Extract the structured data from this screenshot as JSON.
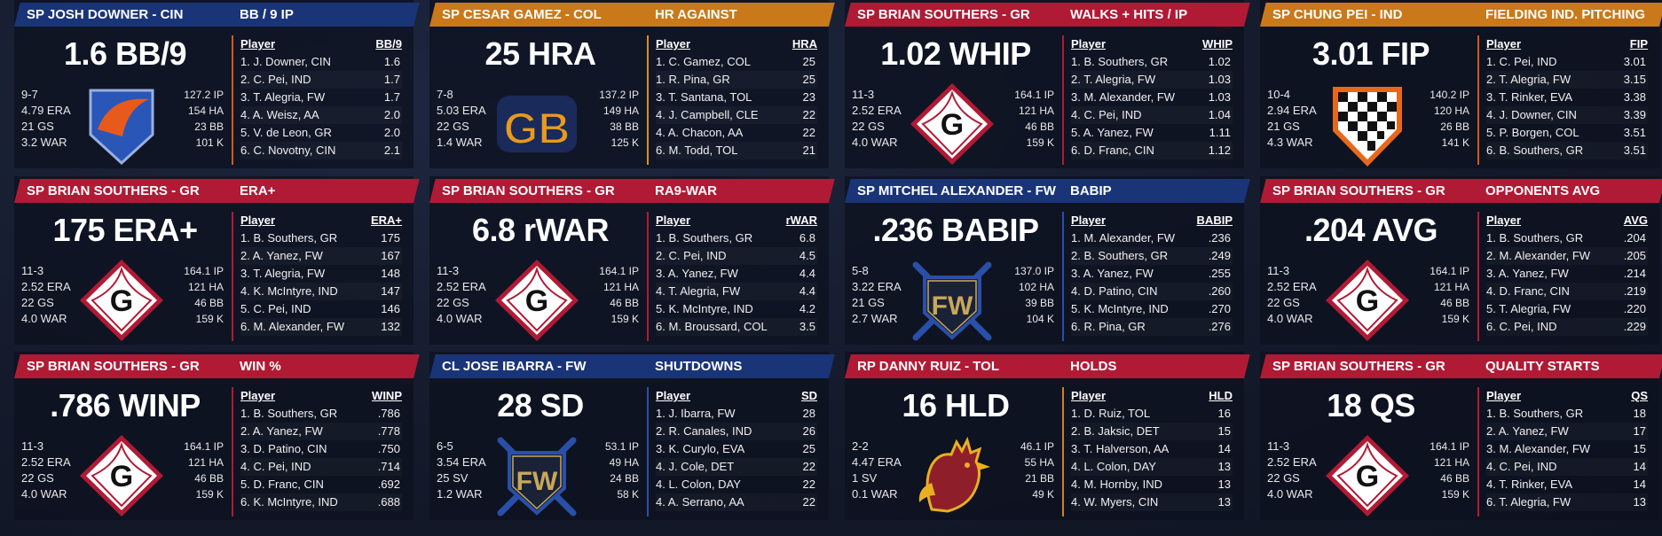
{
  "colors": {
    "red": "#b01a35",
    "blue": "#1a3478",
    "orange": "#c9781a",
    "gold": "#c8861c"
  },
  "cards": [
    {
      "id": "bb9",
      "header_color": "blue",
      "divider_color": "#d15a1b",
      "player": "SP JOSH DOWNER - CIN",
      "stat_title": "BB / 9 IP",
      "big_value": "1.6 BB/9",
      "logo": "cin-logo",
      "record": "9-7",
      "era": "4.79 ERA",
      "games": "21 GS",
      "war": "3.2 WAR",
      "ip": "127.2 IP",
      "hits": "154 HA",
      "bb": "23 BB",
      "k": "101 K",
      "col_player": "Player",
      "col_stat": "BB/9",
      "rows": [
        [
          "1. J. Downer, CIN",
          "1.6"
        ],
        [
          "2. C. Pei, IND",
          "1.7"
        ],
        [
          "3. T. Alegria, FW",
          "1.7"
        ],
        [
          "4. A. Weisz, AA",
          "2.0"
        ],
        [
          "5. V. de Leon, GR",
          "2.0"
        ],
        [
          "6. C. Novotny, CIN",
          "2.1"
        ]
      ]
    },
    {
      "id": "hra",
      "header_color": "orange",
      "divider_color": "#d6901f",
      "player": "SP CESAR GAMEZ - COL",
      "stat_title": "HR AGAINST",
      "big_value": "25 HRA",
      "logo": "gb-logo",
      "record": "7-8",
      "era": "5.03 ERA",
      "games": "22 GS",
      "war": "1.4 WAR",
      "ip": "137.2 IP",
      "hits": "149 HA",
      "bb": "38 BB",
      "k": "125 K",
      "col_player": "Player",
      "col_stat": "HRA",
      "rows": [
        [
          "1. C. Gamez, COL",
          "25"
        ],
        [
          "1. R. Pina, GR",
          "25"
        ],
        [
          "3. T. Santana, TOL",
          "23"
        ],
        [
          "4. J. Campbell, CLE",
          "22"
        ],
        [
          "4. A. Chacon, AA",
          "22"
        ],
        [
          "6. M. Todd, TOL",
          "21"
        ]
      ]
    },
    {
      "id": "whip",
      "header_color": "red",
      "divider_color": "#b01a35",
      "player": "SP BRIAN SOUTHERS - GR",
      "stat_title": "WALKS + HITS / IP",
      "big_value": "1.02 WHIP",
      "logo": "gr-logo",
      "record": "11-3",
      "era": "2.52 ERA",
      "games": "22 GS",
      "war": "4.0 WAR",
      "ip": "164.1 IP",
      "hits": "121 HA",
      "bb": "46 BB",
      "k": "159 K",
      "col_player": "Player",
      "col_stat": "WHIP",
      "rows": [
        [
          "1. B. Southers, GR",
          "1.02"
        ],
        [
          "2. T. Alegria, FW",
          "1.03"
        ],
        [
          "3. M. Alexander, FW",
          "1.03"
        ],
        [
          "4. C. Pei, IND",
          "1.04"
        ],
        [
          "5. A. Yanez, FW",
          "1.11"
        ],
        [
          "6. D. Franc, CIN",
          "1.12"
        ]
      ]
    },
    {
      "id": "fip",
      "header_color": "orange",
      "divider_color": "#d15a1b",
      "player": "SP CHUNG PEI - IND",
      "stat_title": "FIELDING IND. PITCHING",
      "big_value": "3.01 FIP",
      "logo": "ind-logo",
      "record": "10-4",
      "era": "2.94 ERA",
      "games": "21 GS",
      "war": "4.3 WAR",
      "ip": "140.2 IP",
      "hits": "120 HA",
      "bb": "26 BB",
      "k": "141 K",
      "col_player": "Player",
      "col_stat": "FIP",
      "rows": [
        [
          "1. C. Pei, IND",
          "3.01"
        ],
        [
          "2. T. Alegria, FW",
          "3.15"
        ],
        [
          "3. T. Rinker, EVA",
          "3.38"
        ],
        [
          "4. J. Downer, CIN",
          "3.39"
        ],
        [
          "5. P. Borgen, COL",
          "3.51"
        ],
        [
          "6. B. Southers, GR",
          "3.51"
        ]
      ]
    },
    {
      "id": "eraplus",
      "header_color": "red",
      "divider_color": "#b01a35",
      "player": "SP BRIAN SOUTHERS - GR",
      "stat_title": "ERA+",
      "big_value": "175 ERA+",
      "logo": "gr-logo",
      "record": "11-3",
      "era": "2.52 ERA",
      "games": "22 GS",
      "war": "4.0 WAR",
      "ip": "164.1 IP",
      "hits": "121 HA",
      "bb": "46 BB",
      "k": "159 K",
      "col_player": "Player",
      "col_stat": "ERA+",
      "rows": [
        [
          "1. B. Southers, GR",
          "175"
        ],
        [
          "2. A. Yanez, FW",
          "167"
        ],
        [
          "3. T. Alegria, FW",
          "148"
        ],
        [
          "4. K. McIntyre, IND",
          "147"
        ],
        [
          "5. C. Pei, IND",
          "146"
        ],
        [
          "6. M. Alexander, FW",
          "132"
        ]
      ]
    },
    {
      "id": "rwar",
      "header_color": "red",
      "divider_color": "#b01a35",
      "player": "SP BRIAN SOUTHERS - GR",
      "stat_title": "RA9-WAR",
      "big_value": "6.8 rWAR",
      "logo": "gr-logo",
      "record": "11-3",
      "era": "2.52 ERA",
      "games": "22 GS",
      "war": "4.0 WAR",
      "ip": "164.1 IP",
      "hits": "121 HA",
      "bb": "46 BB",
      "k": "159 K",
      "col_player": "Player",
      "col_stat": "rWAR",
      "rows": [
        [
          "1. B. Southers, GR",
          "6.8"
        ],
        [
          "2. C. Pei, IND",
          "4.5"
        ],
        [
          "3. A. Yanez, FW",
          "4.4"
        ],
        [
          "4. T. Alegria, FW",
          "4.4"
        ],
        [
          "5. K. McIntyre, IND",
          "4.2"
        ],
        [
          "6. M. Broussard, COL",
          "3.5"
        ]
      ]
    },
    {
      "id": "babip",
      "header_color": "blue",
      "divider_color": "#2a4fa8",
      "player": "SP MITCHEL ALEXANDER - FW",
      "stat_title": "BABIP",
      "big_value": ".236 BABIP",
      "logo": "fw-logo",
      "record": "5-8",
      "era": "3.22 ERA",
      "games": "21 GS",
      "war": "2.7 WAR",
      "ip": "137.0 IP",
      "hits": "102 HA",
      "bb": "39 BB",
      "k": "104 K",
      "col_player": "Player",
      "col_stat": "BABIP",
      "rows": [
        [
          "1. M. Alexander, FW",
          ".236"
        ],
        [
          "2. B. Southers, GR",
          ".249"
        ],
        [
          "3. A. Yanez, FW",
          ".255"
        ],
        [
          "4. D. Patino, CIN",
          ".260"
        ],
        [
          "5. K. McIntyre, IND",
          ".270"
        ],
        [
          "6. R. Pina, GR",
          ".276"
        ]
      ]
    },
    {
      "id": "avg",
      "header_color": "red",
      "divider_color": "#b01a35",
      "player": "SP BRIAN SOUTHERS - GR",
      "stat_title": "OPPONENTS AVG",
      "big_value": ".204 AVG",
      "logo": "gr-logo",
      "record": "11-3",
      "era": "2.52 ERA",
      "games": "22 GS",
      "war": "4.0 WAR",
      "ip": "164.1 IP",
      "hits": "121 HA",
      "bb": "46 BB",
      "k": "159 K",
      "col_player": "Player",
      "col_stat": "AVG",
      "rows": [
        [
          "1. B. Southers, GR",
          ".204"
        ],
        [
          "2. M. Alexander, FW",
          ".205"
        ],
        [
          "3. A. Yanez, FW",
          ".214"
        ],
        [
          "4. D. Franc, CIN",
          ".219"
        ],
        [
          "5. T. Alegria, FW",
          ".220"
        ],
        [
          "6. C. Pei, IND",
          ".229"
        ]
      ]
    },
    {
      "id": "winp",
      "header_color": "red",
      "divider_color": "#b01a35",
      "player": "SP BRIAN SOUTHERS - GR",
      "stat_title": "WIN %",
      "big_value": ".786 WINP",
      "logo": "gr-logo",
      "record": "11-3",
      "era": "2.52 ERA",
      "games": "22 GS",
      "war": "4.0 WAR",
      "ip": "164.1 IP",
      "hits": "121 HA",
      "bb": "46 BB",
      "k": "159 K",
      "col_player": "Player",
      "col_stat": "WINP",
      "rows": [
        [
          "1. B. Southers, GR",
          ".786"
        ],
        [
          "2. A. Yanez, FW",
          ".778"
        ],
        [
          "3. D. Patino, CIN",
          ".750"
        ],
        [
          "4. C. Pei, IND",
          ".714"
        ],
        [
          "5. D. Franc, CIN",
          ".692"
        ],
        [
          "6. K. McIntyre, IND",
          ".688"
        ]
      ]
    },
    {
      "id": "sd",
      "header_color": "blue",
      "divider_color": "#2a4fa8",
      "player": "CL JOSE IBARRA - FW",
      "stat_title": "SHUTDOWNS",
      "big_value": "28 SD",
      "logo": "fw-logo",
      "record": "6-5",
      "era": "3.54 ERA",
      "games": "25 SV",
      "war": "1.2 WAR",
      "ip": "53.1 IP",
      "hits": "49 HA",
      "bb": "24 BB",
      "k": "58 K",
      "col_player": "Player",
      "col_stat": "SD",
      "rows": [
        [
          "1. J. Ibarra, FW",
          "28"
        ],
        [
          "2. R. Canales, IND",
          "26"
        ],
        [
          "3. K. Curylo, EVA",
          "25"
        ],
        [
          "4. J. Cole, DET",
          "22"
        ],
        [
          "4. L. Colon, DAY",
          "22"
        ],
        [
          "4. A. Serrano, AA",
          "22"
        ]
      ]
    },
    {
      "id": "hld",
      "header_color": "red",
      "divider_color": "#c8861c",
      "player": "RP DANNY RUIZ - TOL",
      "stat_title": "HOLDS",
      "big_value": "16 HLD",
      "logo": "tol-logo",
      "record": "2-2",
      "era": "4.47 ERA",
      "games": "1 SV",
      "war": "0.1 WAR",
      "ip": "46.1 IP",
      "hits": "55 HA",
      "bb": "21 BB",
      "k": "49 K",
      "col_player": "Player",
      "col_stat": "HLD",
      "rows": [
        [
          "1. D. Ruiz, TOL",
          "16"
        ],
        [
          "2. B. Jaksic, DET",
          "15"
        ],
        [
          "3. T. Halverson, AA",
          "14"
        ],
        [
          "4. L. Colon, DAY",
          "13"
        ],
        [
          "4. M. Hornby, IND",
          "13"
        ],
        [
          "4. W. Myers, CIN",
          "13"
        ]
      ]
    },
    {
      "id": "qs",
      "header_color": "red",
      "divider_color": "#b01a35",
      "player": "SP BRIAN SOUTHERS - GR",
      "stat_title": "QUALITY STARTS",
      "big_value": "18 QS",
      "logo": "gr-logo",
      "record": "11-3",
      "era": "2.52 ERA",
      "games": "22 GS",
      "war": "4.0 WAR",
      "ip": "164.1 IP",
      "hits": "121 HA",
      "bb": "46 BB",
      "k": "159 K",
      "col_player": "Player",
      "col_stat": "QS",
      "rows": [
        [
          "1. B. Southers, GR",
          "18"
        ],
        [
          "2. A. Yanez, FW",
          "17"
        ],
        [
          "3. M. Alexander, FW",
          "15"
        ],
        [
          "4. C. Pei, IND",
          "14"
        ],
        [
          "4. T. Rinker, EVA",
          "14"
        ],
        [
          "6. T. Alegria, FW",
          "13"
        ]
      ]
    }
  ]
}
